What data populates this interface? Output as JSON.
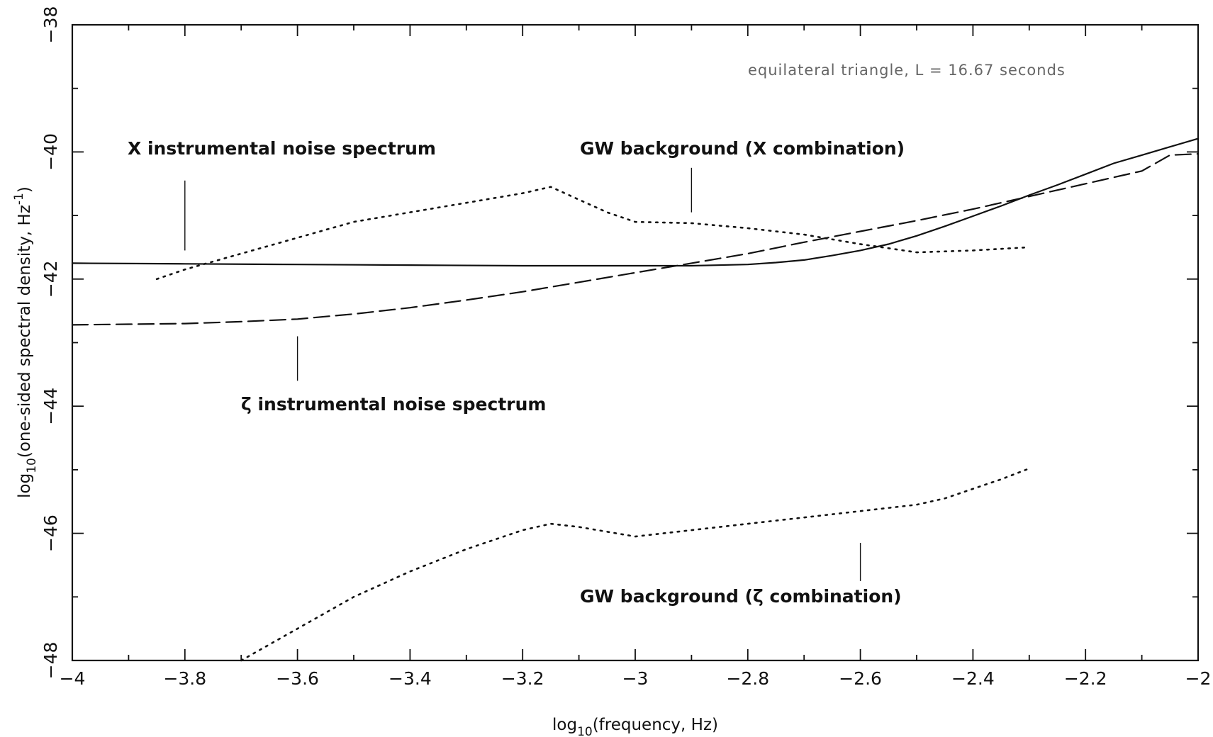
{
  "chart_data": {
    "type": "line",
    "xlabel": "log10(frequency, Hz)",
    "ylabel": "log10(one-sided spectral density, Hz^-1)",
    "xlabel_parts": {
      "pre": "log",
      "sub": "10",
      "post": "(frequency, Hz)"
    },
    "ylabel_parts": {
      "pre": "log",
      "sub": "10",
      "mid": "(one-sided spectral density, Hz",
      "sup": "-1",
      "post": ")"
    },
    "xlim": [
      -4,
      -2
    ],
    "ylim": [
      -48,
      -38
    ],
    "x_ticks": [
      -4,
      -3.8,
      -3.6,
      -3.4,
      -3.2,
      -3,
      -2.8,
      -2.6,
      -2.4,
      -2.2,
      -2
    ],
    "x_tick_labels": [
      "-4",
      "-3.8",
      "-3.6",
      "-3.4",
      "-3.2",
      "-3",
      "-2.8",
      "-2.6",
      "-2.4",
      "-2.2",
      "-2"
    ],
    "y_ticks": [
      -48,
      -46,
      -44,
      -42,
      -40,
      -38
    ],
    "y_tick_labels": [
      "-48",
      "-46",
      "-44",
      "-42",
      "-40",
      "-38"
    ],
    "grid": false,
    "series": [
      {
        "key": "x-instrumental-noise",
        "style": "solid",
        "x": [
          -4,
          -3.8,
          -3.6,
          -3.4,
          -3.2,
          -3.0,
          -2.9,
          -2.8,
          -2.75,
          -2.7,
          -2.65,
          -2.6,
          -2.55,
          -2.5,
          -2.45,
          -2.4,
          -2.35,
          -2.3,
          -2.25,
          -2.2,
          -2.15,
          -2.1,
          -2.05,
          -2.0
        ],
        "y": [
          -41.75,
          -41.76,
          -41.77,
          -41.78,
          -41.79,
          -41.79,
          -41.79,
          -41.77,
          -41.74,
          -41.7,
          -41.63,
          -41.55,
          -41.45,
          -41.32,
          -41.17,
          -41.01,
          -40.85,
          -40.68,
          -40.52,
          -40.35,
          -40.18,
          -40.05,
          -39.92,
          -39.79
        ]
      },
      {
        "key": "zeta-instrumental-noise",
        "style": "dashed",
        "x": [
          -4,
          -3.9,
          -3.8,
          -3.7,
          -3.6,
          -3.5,
          -3.4,
          -3.3,
          -3.2,
          -3.1,
          -3.0,
          -2.9,
          -2.8,
          -2.7,
          -2.6,
          -2.5,
          -2.4,
          -2.3,
          -2.2,
          -2.1,
          -2.05,
          -2.0
        ],
        "y": [
          -42.72,
          -42.71,
          -42.7,
          -42.67,
          -42.63,
          -42.55,
          -42.45,
          -42.33,
          -42.2,
          -42.05,
          -41.9,
          -41.75,
          -41.6,
          -41.42,
          -41.25,
          -41.08,
          -40.9,
          -40.7,
          -40.5,
          -40.3,
          -40.05,
          -40.03
        ]
      },
      {
        "key": "gw-background-x",
        "style": "dotted",
        "x": [
          -3.85,
          -3.8,
          -3.7,
          -3.6,
          -3.5,
          -3.4,
          -3.3,
          -3.2,
          -3.15,
          -3.1,
          -3.05,
          -3.0,
          -2.9,
          -2.8,
          -2.7,
          -2.6,
          -2.5,
          -2.4,
          -2.3
        ],
        "y": [
          -42.0,
          -41.85,
          -41.6,
          -41.35,
          -41.1,
          -40.95,
          -40.8,
          -40.65,
          -40.55,
          -40.75,
          -40.95,
          -41.1,
          -41.12,
          -41.2,
          -41.3,
          -41.45,
          -41.58,
          -41.55,
          -41.5
        ]
      },
      {
        "key": "gw-background-zeta",
        "style": "dotted",
        "x": [
          -3.7,
          -3.6,
          -3.5,
          -3.4,
          -3.3,
          -3.2,
          -3.15,
          -3.1,
          -3.0,
          -2.9,
          -2.8,
          -2.7,
          -2.6,
          -2.5,
          -2.45,
          -2.4,
          -2.35,
          -2.3
        ],
        "y": [
          -48.0,
          -47.5,
          -47.0,
          -46.6,
          -46.25,
          -45.95,
          -45.85,
          -45.9,
          -46.05,
          -45.95,
          -45.85,
          -45.75,
          -45.65,
          -45.55,
          -45.45,
          -45.3,
          -45.15,
          -44.98
        ]
      }
    ],
    "annotations": [
      {
        "key": "x-noise-label",
        "text": "X instrumental noise spectrum"
      },
      {
        "key": "zeta-noise-label",
        "text": "ζ instrumental noise spectrum"
      },
      {
        "key": "gw-x-label",
        "text": "GW background (X combination)"
      },
      {
        "key": "gw-zeta-label",
        "text": "GW background (ζ combination)"
      },
      {
        "key": "config-label",
        "text": "equilateral triangle, L = 16.67 seconds"
      }
    ]
  }
}
